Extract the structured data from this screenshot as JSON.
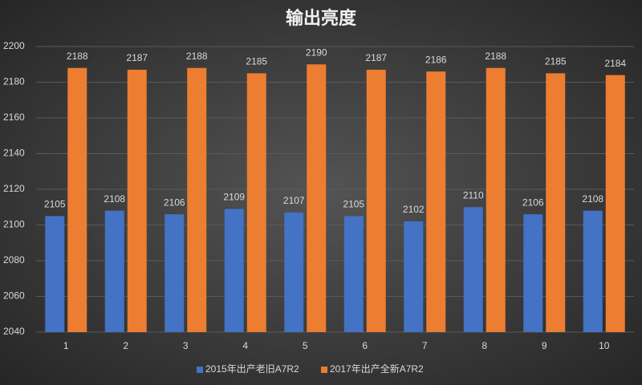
{
  "chart_data": {
    "type": "bar",
    "title": "输出亮度",
    "categories": [
      "1",
      "2",
      "3",
      "4",
      "5",
      "6",
      "7",
      "8",
      "9",
      "10"
    ],
    "series": [
      {
        "name": "2015年出产老旧A7R2",
        "color": "#4472c4",
        "values": [
          2105,
          2108,
          2106,
          2109,
          2107,
          2105,
          2102,
          2110,
          2106,
          2108
        ]
      },
      {
        "name": "2017年出产全新A7R2",
        "color": "#ed7d31",
        "values": [
          2188,
          2187,
          2188,
          2185,
          2190,
          2187,
          2186,
          2188,
          2185,
          2184
        ]
      }
    ],
    "ylim": [
      2040,
      2200
    ],
    "yticks": [
      2040,
      2060,
      2080,
      2100,
      2120,
      2140,
      2160,
      2180,
      2200
    ],
    "grid": true,
    "legend": "bottom"
  }
}
